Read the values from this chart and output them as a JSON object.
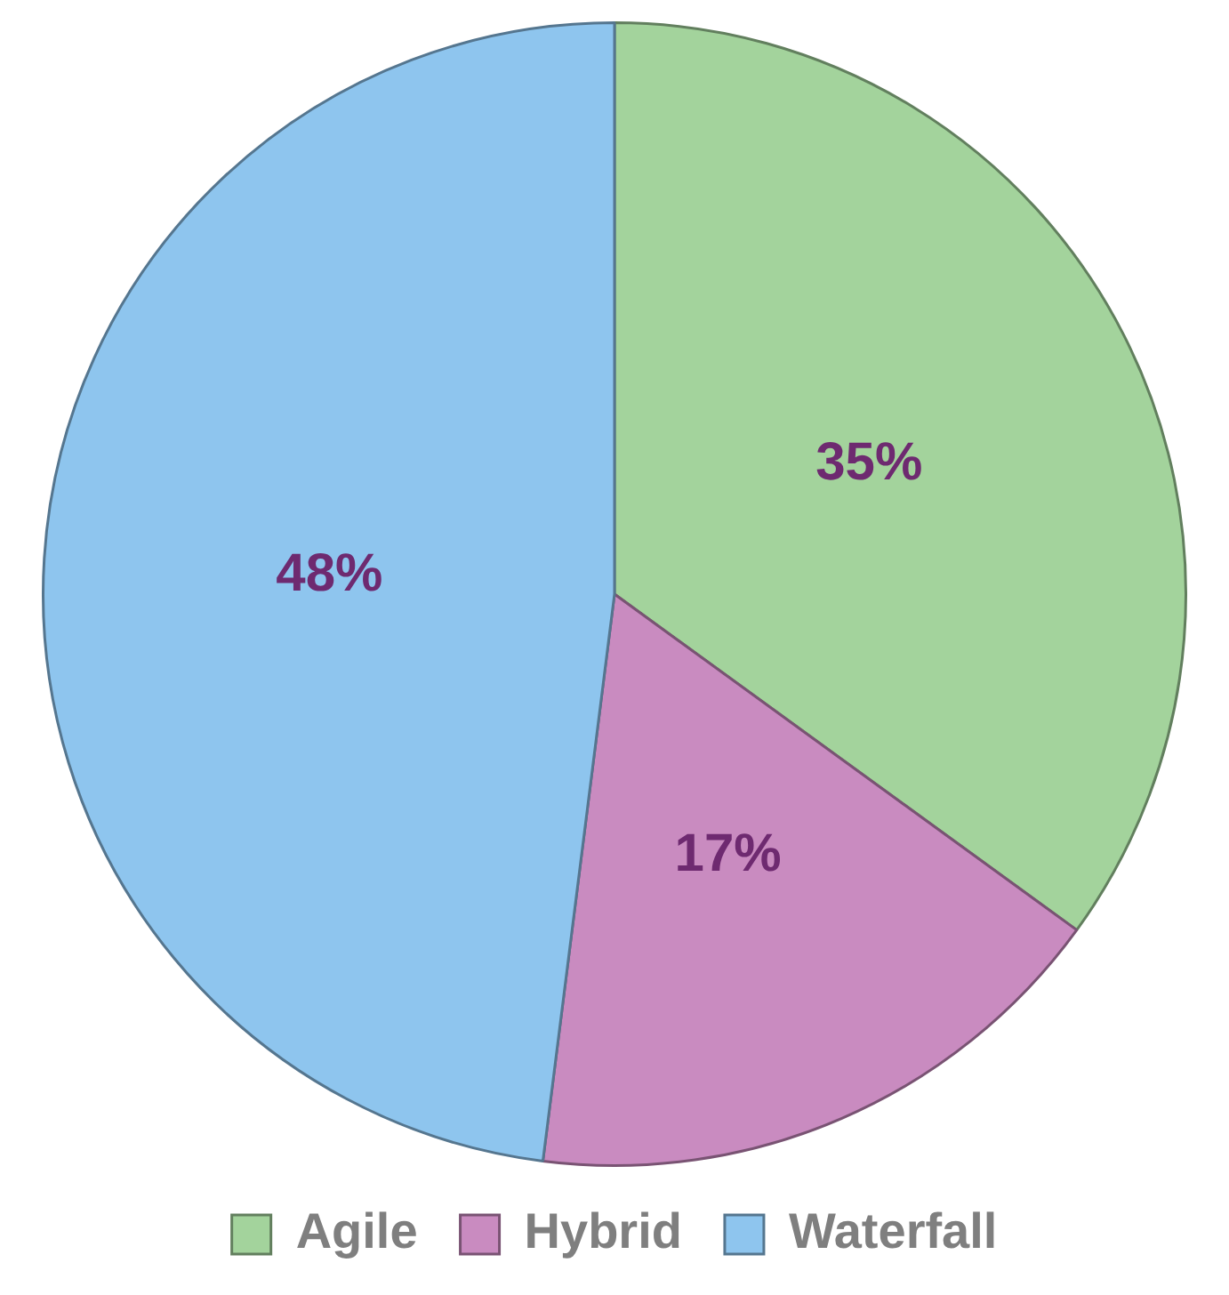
{
  "chart_data": {
    "type": "pie",
    "categories": [
      "Agile",
      "Hybrid",
      "Waterfall"
    ],
    "values": [
      35,
      17,
      48
    ],
    "colors": [
      "#a3d39c",
      "#c98bc0",
      "#8ec5ee"
    ],
    "value_labels": [
      "35%",
      "17%",
      "48%"
    ],
    "legend": "bottom"
  }
}
